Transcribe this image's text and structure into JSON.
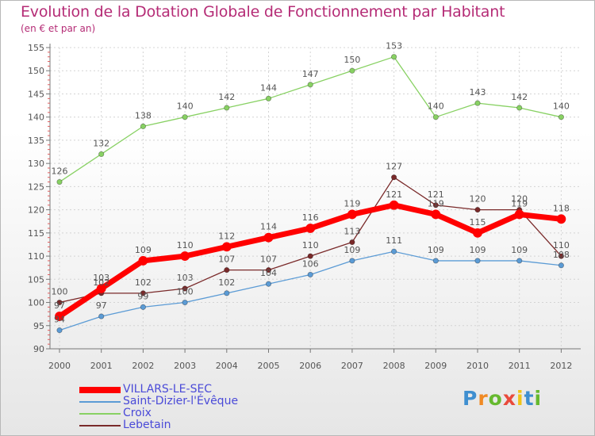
{
  "title": "Evolution de la Dotation Globale de Fonctionnement par Habitant",
  "subtitle": "(en € et par an)",
  "logo_text": "Proxiti",
  "chart_data": {
    "type": "line",
    "title": "Evolution de la Dotation Globale de Fonctionnement par Habitant",
    "subtitle": "(en € et par an)",
    "x": [
      "2000",
      "2001",
      "2002",
      "2003",
      "2004",
      "2005",
      "2006",
      "2007",
      "2008",
      "2009",
      "2010",
      "2011",
      "2012"
    ],
    "ylim": [
      90,
      155
    ],
    "yticks": [
      90,
      95,
      100,
      105,
      110,
      115,
      120,
      125,
      130,
      135,
      140,
      145,
      150,
      155
    ],
    "grid": true,
    "legend_position": "bottom-left",
    "series": [
      {
        "name": "Croix",
        "color": "#88d163",
        "values": [
          126,
          132,
          138,
          140,
          142,
          144,
          147,
          150,
          153,
          140,
          143,
          142,
          140
        ]
      },
      {
        "name": "Saint-Dizier-l'Évêque",
        "color": "#5b9bd5",
        "values": [
          94,
          97,
          99,
          100,
          102,
          104,
          106,
          109,
          111,
          109,
          109,
          109,
          108
        ]
      },
      {
        "name": "Lebetain",
        "color": "#7a2a2a",
        "values": [
          100,
          102,
          102,
          103,
          107,
          107,
          110,
          113,
          127,
          121,
          120,
          120,
          110
        ]
      },
      {
        "name": "VILLARS-LE-SEC",
        "color": "#ff0000",
        "values": [
          97,
          103,
          109,
          110,
          112,
          114,
          116,
          119,
          121,
          119,
          115,
          119,
          118
        ]
      }
    ]
  }
}
